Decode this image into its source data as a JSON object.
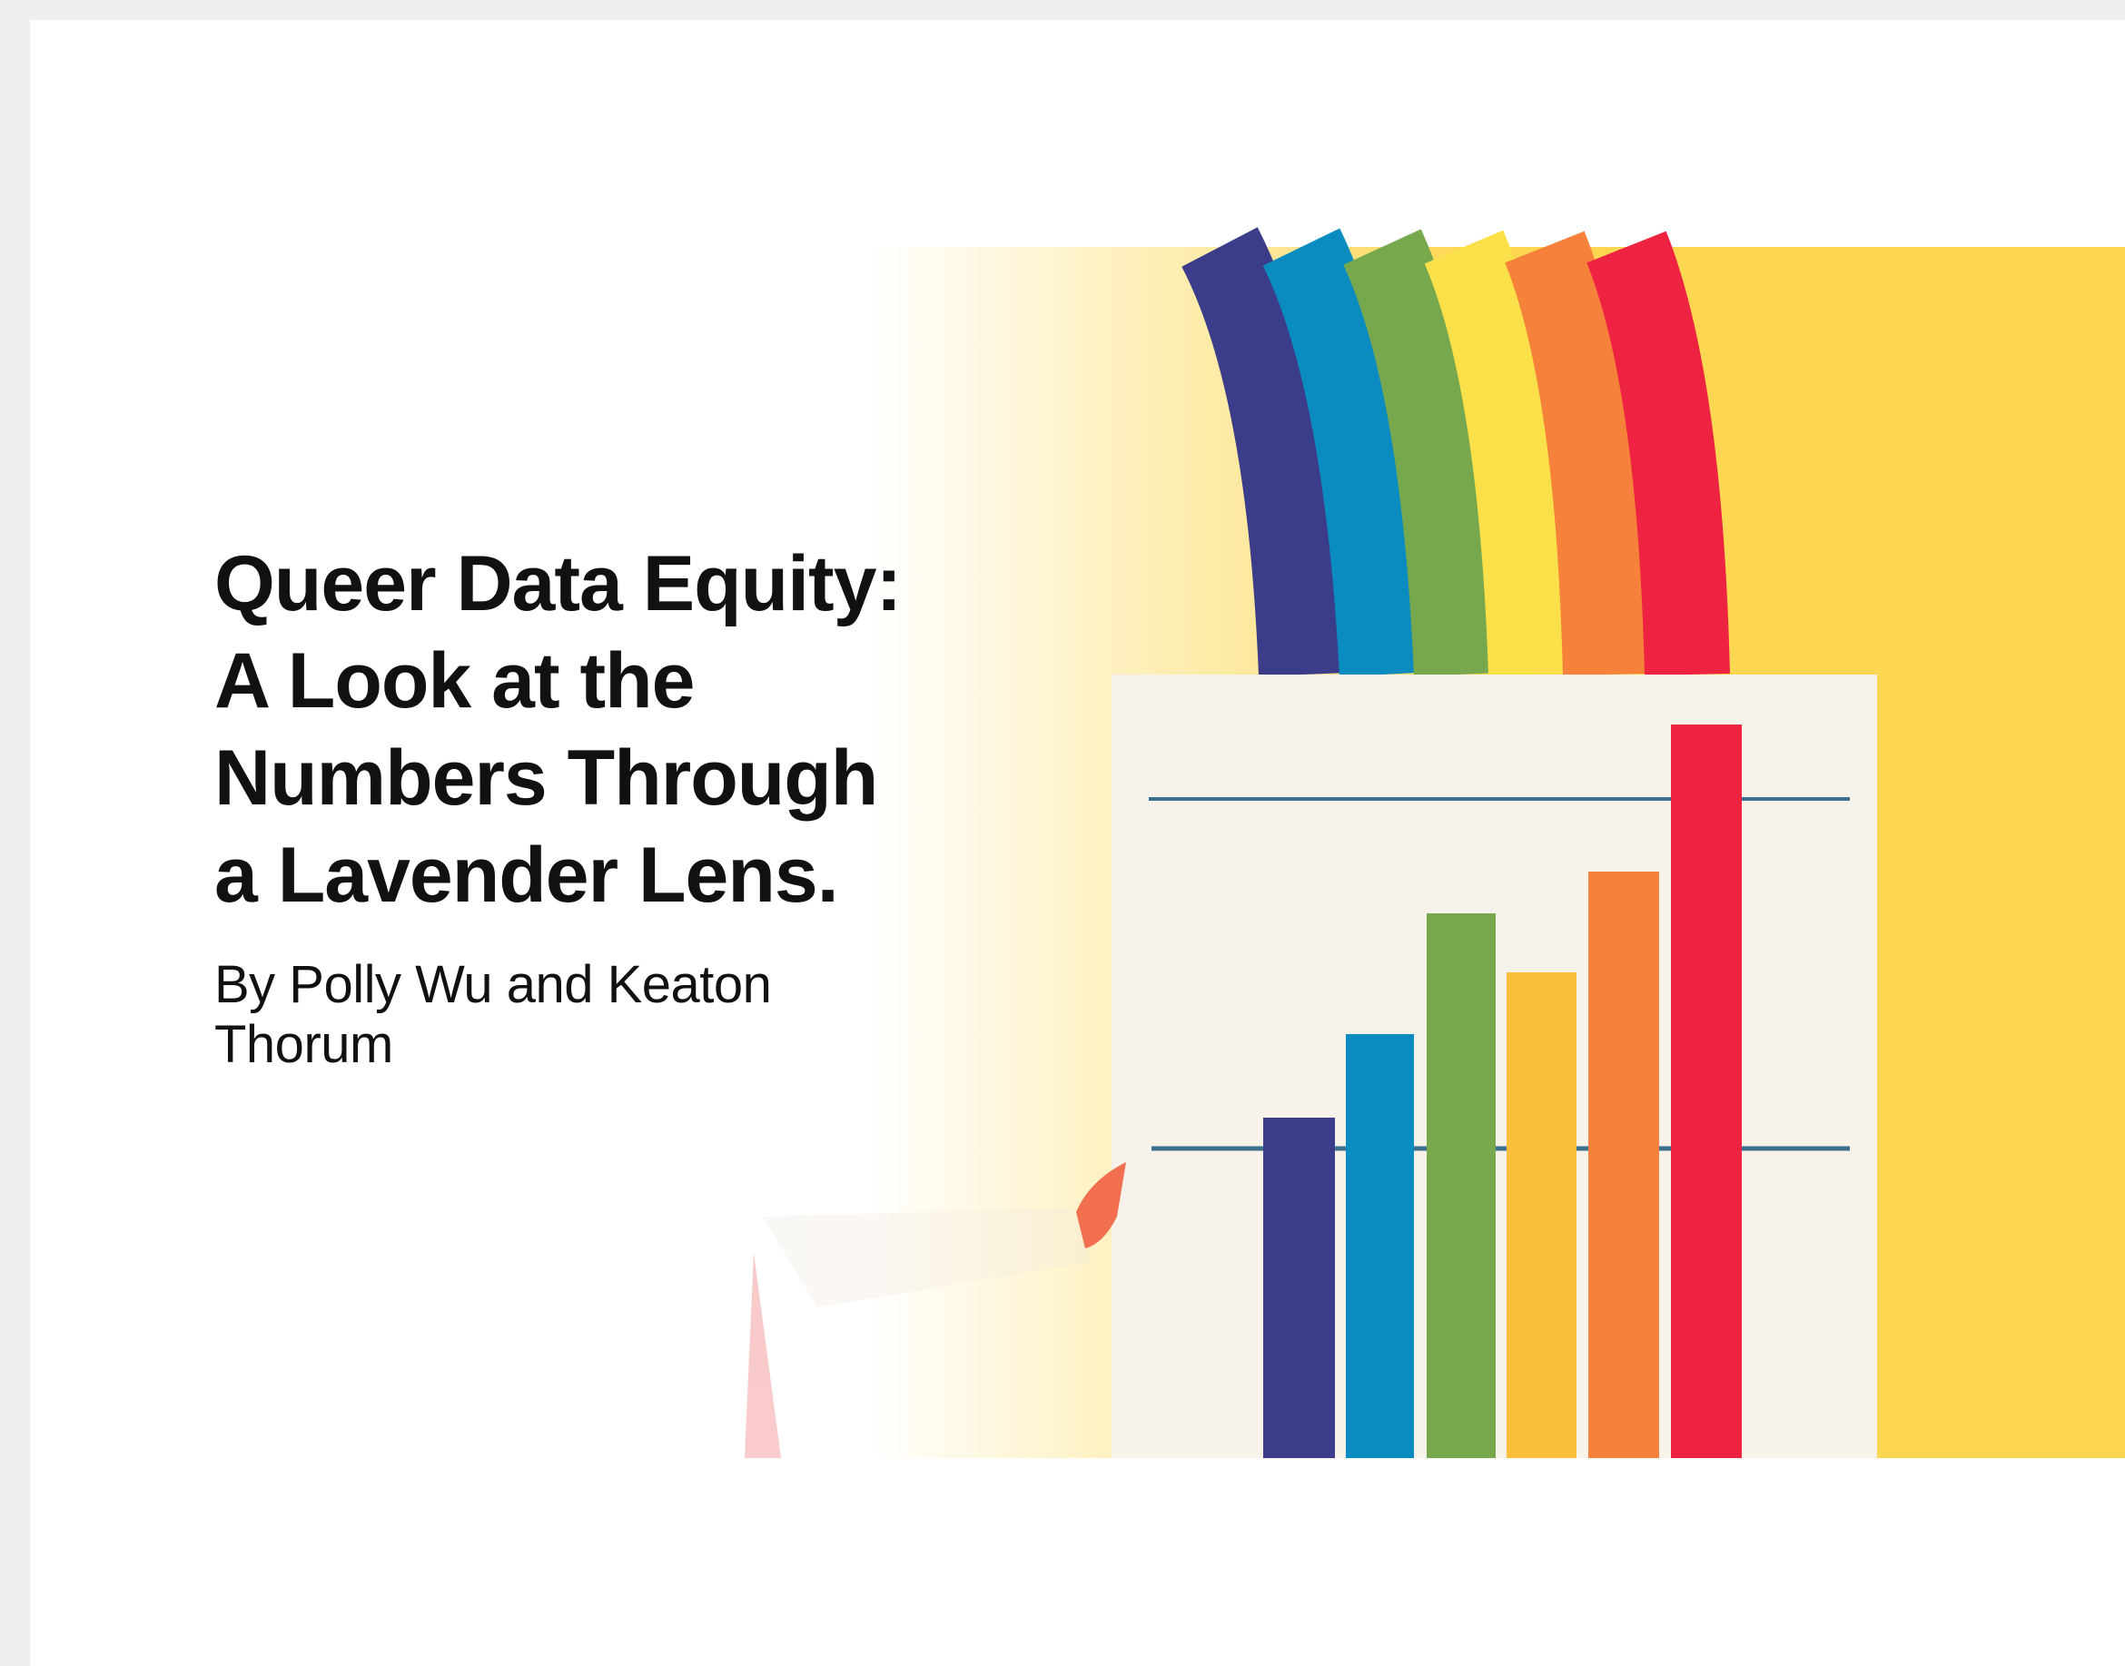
{
  "header": {
    "title": "Queer Data Equity: A Look at the Numbers Through a Lavender Lens.",
    "byline": "By Polly Wu and Keaton Thorum"
  }
}
